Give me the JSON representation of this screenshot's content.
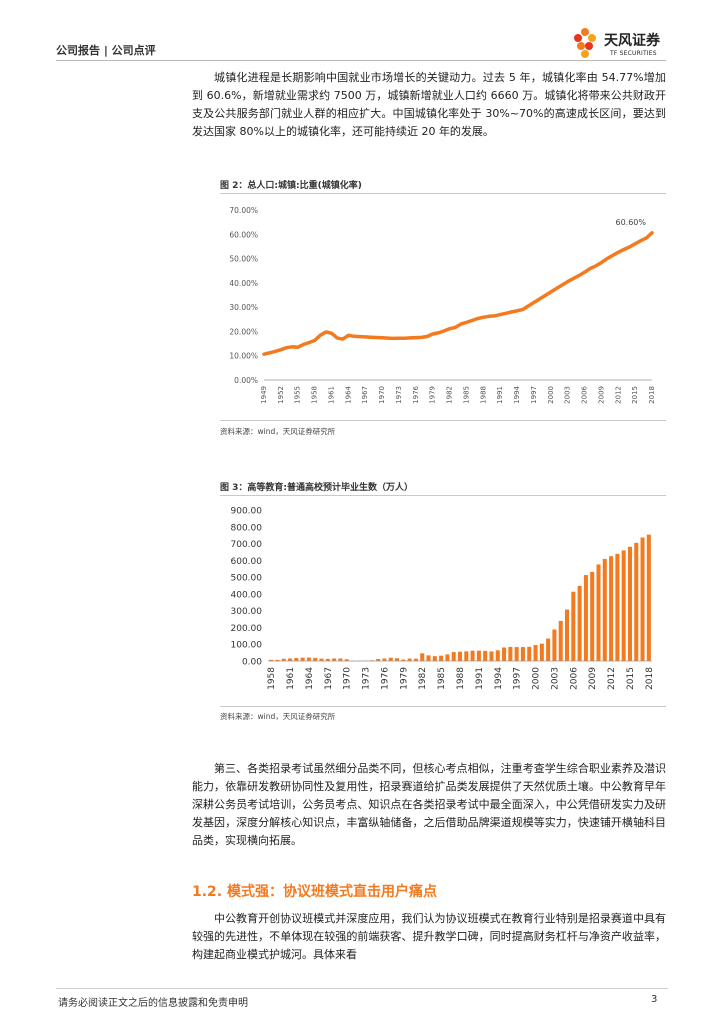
{
  "header": {
    "left": "公司报告 | 公司点评",
    "brand_cn": "天风证券",
    "brand_en": "TF SECURITIES"
  },
  "paragraph1": "城镇化进程是长期影响中国就业市场增长的关键动力。过去 5 年，城镇化率由 54.77%增加到 60.6%，新增就业需求约 7500 万，城镇新增就业人口约 6660 万。城镇化将带来公共财政开支及公共服务部门就业人群的相应扩大。中国城镇化率处于 30%~70%的高速成长区间，要达到发达国家 80%以上的城镇化率，还可能持续近 20 年的发展。",
  "figure2": {
    "title": "图 2：总人口:城镇:比重(城镇化率)",
    "source": "资料来源：wind，天风证券研究所"
  },
  "figure3": {
    "title": "图 3：高等教育:普通高校预计毕业生数（万人）",
    "source": "资料来源：wind，天风证券研究所"
  },
  "paragraph2": "第三、各类招录考试虽然细分品类不同，但核心考点相似，注重考查学生综合职业素养及潜识能力，依靠研发教研协同性及复用性，招录赛道给扩品类发展提供了天然优质土壤。中公教育早年深耕公务员考试培训，公务员考点、知识点在各类招录考试中最全面深入，中公凭借研发实力及研发基因，深度分解核心知识点，丰富纵轴储备，之后借助品牌渠道规模等实力，快速铺开横轴科目品类，实现横向拓展。",
  "section_title": "1.2. 模式强：协议班模式直击用户痛点",
  "paragraph3": "中公教育开创协议班模式并深度应用，我们认为协议班模式在教育行业特别是招录赛道中具有较强的先进性，不单体现在较强的前端获客、提升教学口碑，同时提高财务杠杆与净资产收益率，构建起商业模式护城河。具体来看",
  "footer": {
    "disclaimer": "请务必阅读正文之后的信息披露和免责申明",
    "page": "3"
  },
  "chart_data": [
    {
      "type": "line",
      "title": "总人口:城镇:比重(城镇化率)",
      "color": "#f37a1f",
      "x": [
        1949,
        1950,
        1951,
        1952,
        1953,
        1954,
        1955,
        1956,
        1957,
        1958,
        1959,
        1960,
        1961,
        1962,
        1963,
        1964,
        1965,
        1966,
        1967,
        1968,
        1969,
        1970,
        1971,
        1972,
        1973,
        1974,
        1975,
        1976,
        1977,
        1978,
        1979,
        1980,
        1981,
        1982,
        1983,
        1984,
        1985,
        1986,
        1987,
        1988,
        1989,
        1990,
        1991,
        1992,
        1993,
        1994,
        1995,
        1996,
        1997,
        1998,
        1999,
        2000,
        2001,
        2002,
        2003,
        2004,
        2005,
        2006,
        2007,
        2008,
        2009,
        2010,
        2011,
        2012,
        2013,
        2014,
        2015,
        2016,
        2017,
        2018
      ],
      "y": [
        10.64,
        11.18,
        11.78,
        12.46,
        13.31,
        13.69,
        13.48,
        14.62,
        15.39,
        16.25,
        18.41,
        19.75,
        19.29,
        17.33,
        16.84,
        18.37,
        17.98,
        17.86,
        17.74,
        17.62,
        17.5,
        17.38,
        17.26,
        17.13,
        17.2,
        17.16,
        17.34,
        17.44,
        17.55,
        17.92,
        18.96,
        19.39,
        20.16,
        21.13,
        21.62,
        23.01,
        23.71,
        24.52,
        25.32,
        25.81,
        26.21,
        26.41,
        26.94,
        27.46,
        27.99,
        28.51,
        29.04,
        30.48,
        31.91,
        33.35,
        34.78,
        36.22,
        37.66,
        39.09,
        40.53,
        41.76,
        42.99,
        44.34,
        45.89,
        46.99,
        48.34,
        49.95,
        51.27,
        52.57,
        53.73,
        54.77,
        56.1,
        57.35,
        58.52,
        60.6
      ],
      "ylim": [
        0,
        70
      ],
      "yticks": [
        "0.00%",
        "10.00%",
        "20.00%",
        "30.00%",
        "40.00%",
        "50.00%",
        "60.00%",
        "70.00%"
      ],
      "xtick_labels": [
        "1949",
        "1952",
        "1955",
        "1958",
        "1961",
        "1964",
        "1967",
        "1970",
        "1973",
        "1976",
        "1979",
        "1982",
        "1985",
        "1988",
        "1991",
        "1994",
        "1997",
        "2000",
        "2003",
        "2006",
        "2009",
        "2012",
        "2015",
        "2018"
      ],
      "annotation": "60.60%"
    },
    {
      "type": "bar",
      "title": "高等教育:普通高校预计毕业生数（万人）",
      "color": "#f37a1f",
      "categories": [
        1958,
        1959,
        1960,
        1961,
        1962,
        1963,
        1964,
        1965,
        1966,
        1967,
        1968,
        1969,
        1970,
        1971,
        1972,
        1973,
        1974,
        1975,
        1976,
        1977,
        1978,
        1979,
        1980,
        1981,
        1982,
        1983,
        1984,
        1985,
        1986,
        1987,
        1988,
        1989,
        1990,
        1991,
        1992,
        1993,
        1994,
        1995,
        1996,
        1997,
        1998,
        1999,
        2000,
        2001,
        2002,
        2003,
        2004,
        2005,
        2006,
        2007,
        2008,
        2009,
        2010,
        2011,
        2012,
        2013,
        2014,
        2015,
        2016,
        2017,
        2018
      ],
      "values": [
        7.2,
        7.0,
        13.6,
        15.1,
        17.7,
        19.9,
        20.4,
        18.6,
        14.1,
        12.5,
        15.0,
        15.0,
        10.3,
        0.6,
        1.7,
        3.0,
        4.3,
        11.9,
        14.9,
        19.4,
        16.5,
        8.5,
        14.7,
        14.0,
        45.7,
        33.5,
        28.7,
        31.6,
        39.3,
        53.2,
        55.3,
        57.6,
        61.4,
        61.4,
        60.4,
        57.1,
        63.7,
        80.5,
        83.9,
        82.9,
        83.0,
        84.8,
        95.0,
        103.6,
        133.7,
        187.7,
        239.1,
        306.8,
        413.0,
        447.8,
        512.0,
        531.1,
        575.4,
        608.2,
        624.7,
        638.7,
        659.4,
        680.9,
        704.2,
        735.8,
        753.3
      ],
      "ylim": [
        0,
        900
      ],
      "yticks": [
        "0.00",
        "100.00",
        "200.00",
        "300.00",
        "400.00",
        "500.00",
        "600.00",
        "700.00",
        "800.00",
        "900.00"
      ],
      "xtick_labels": [
        "1958",
        "1961",
        "1964",
        "1967",
        "1970",
        "1973",
        "1976",
        "1979",
        "1982",
        "1985",
        "1988",
        "1991",
        "1994",
        "1997",
        "2000",
        "2003",
        "2006",
        "2009",
        "2012",
        "2015",
        "2018"
      ]
    }
  ]
}
